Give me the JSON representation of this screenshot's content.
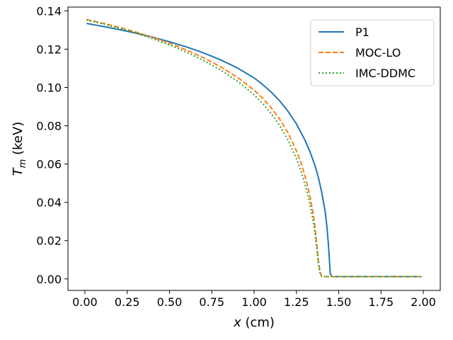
{
  "chart_data": {
    "type": "line",
    "title": "",
    "xlabel_var": "x",
    "xlabel_unit": " (cm)",
    "ylabel_var": "T",
    "ylabel_sub": "m",
    "ylabel_unit": " (keV)",
    "xlim": [
      -0.1,
      2.1
    ],
    "ylim": [
      -0.006,
      0.142
    ],
    "xticks": [
      0.0,
      0.25,
      0.5,
      0.75,
      1.0,
      1.25,
      1.5,
      1.75,
      2.0
    ],
    "xtick_labels": [
      "0.00",
      "0.25",
      "0.50",
      "0.75",
      "1.00",
      "1.25",
      "1.50",
      "1.75",
      "2.00"
    ],
    "yticks": [
      0.0,
      0.02,
      0.04,
      0.06,
      0.08,
      0.1,
      0.12,
      0.14
    ],
    "ytick_labels": [
      "0.00",
      "0.02",
      "0.04",
      "0.06",
      "0.08",
      "0.10",
      "0.12",
      "0.14"
    ],
    "grid": false,
    "legend_position": "top-right",
    "series": [
      {
        "name": "P1",
        "color": "#1f77b4",
        "style": "solid",
        "x": [
          0.01,
          0.1,
          0.2,
          0.3,
          0.4,
          0.5,
          0.6,
          0.7,
          0.8,
          0.9,
          1.0,
          1.05,
          1.1,
          1.15,
          1.2,
          1.25,
          1.3,
          1.33,
          1.36,
          1.38,
          1.4,
          1.42,
          1.43,
          1.44,
          1.45,
          1.46,
          1.5,
          1.75,
          1.99
        ],
        "y": [
          0.1335,
          0.132,
          0.1303,
          0.1284,
          0.1263,
          0.1239,
          0.1212,
          0.1181,
          0.1145,
          0.1103,
          0.105,
          0.1016,
          0.0977,
          0.0931,
          0.0876,
          0.081,
          0.0726,
          0.0665,
          0.0592,
          0.0529,
          0.0451,
          0.0352,
          0.0275,
          0.017,
          0.0028,
          0.0012,
          0.0012,
          0.0012,
          0.0012
        ]
      },
      {
        "name": "MOC-LO",
        "color": "#ff7f0e",
        "style": "dashed",
        "x": [
          0.01,
          0.1,
          0.2,
          0.3,
          0.4,
          0.5,
          0.6,
          0.7,
          0.8,
          0.9,
          1.0,
          1.05,
          1.1,
          1.15,
          1.2,
          1.25,
          1.28,
          1.31,
          1.33,
          1.35,
          1.36,
          1.37,
          1.38,
          1.39,
          1.4,
          1.5,
          1.75,
          1.99
        ],
        "y": [
          0.1355,
          0.1337,
          0.1315,
          0.129,
          0.1262,
          0.1231,
          0.1196,
          0.1156,
          0.1109,
          0.1054,
          0.0986,
          0.0944,
          0.0895,
          0.0836,
          0.0764,
          0.0669,
          0.0599,
          0.0508,
          0.0432,
          0.0336,
          0.0271,
          0.0185,
          0.0095,
          0.0035,
          0.0012,
          0.0012,
          0.0012,
          0.0012
        ]
      },
      {
        "name": "IMC-DDMC",
        "color": "#2ca02c",
        "style": "dotted",
        "x": [
          0.01,
          0.1,
          0.2,
          0.3,
          0.4,
          0.5,
          0.6,
          0.7,
          0.8,
          0.9,
          1.0,
          1.05,
          1.1,
          1.15,
          1.2,
          1.25,
          1.28,
          1.31,
          1.33,
          1.35,
          1.36,
          1.37,
          1.38,
          1.39,
          1.4,
          1.5,
          1.75,
          1.99
        ],
        "y": [
          0.1353,
          0.1334,
          0.1311,
          0.1285,
          0.1255,
          0.1222,
          0.1185,
          0.1142,
          0.1092,
          0.1034,
          0.0962,
          0.0917,
          0.0865,
          0.0803,
          0.0726,
          0.0628,
          0.0555,
          0.0465,
          0.0392,
          0.0298,
          0.0235,
          0.0158,
          0.0078,
          0.0028,
          0.0012,
          0.0012,
          0.0012,
          0.0012
        ]
      }
    ]
  }
}
